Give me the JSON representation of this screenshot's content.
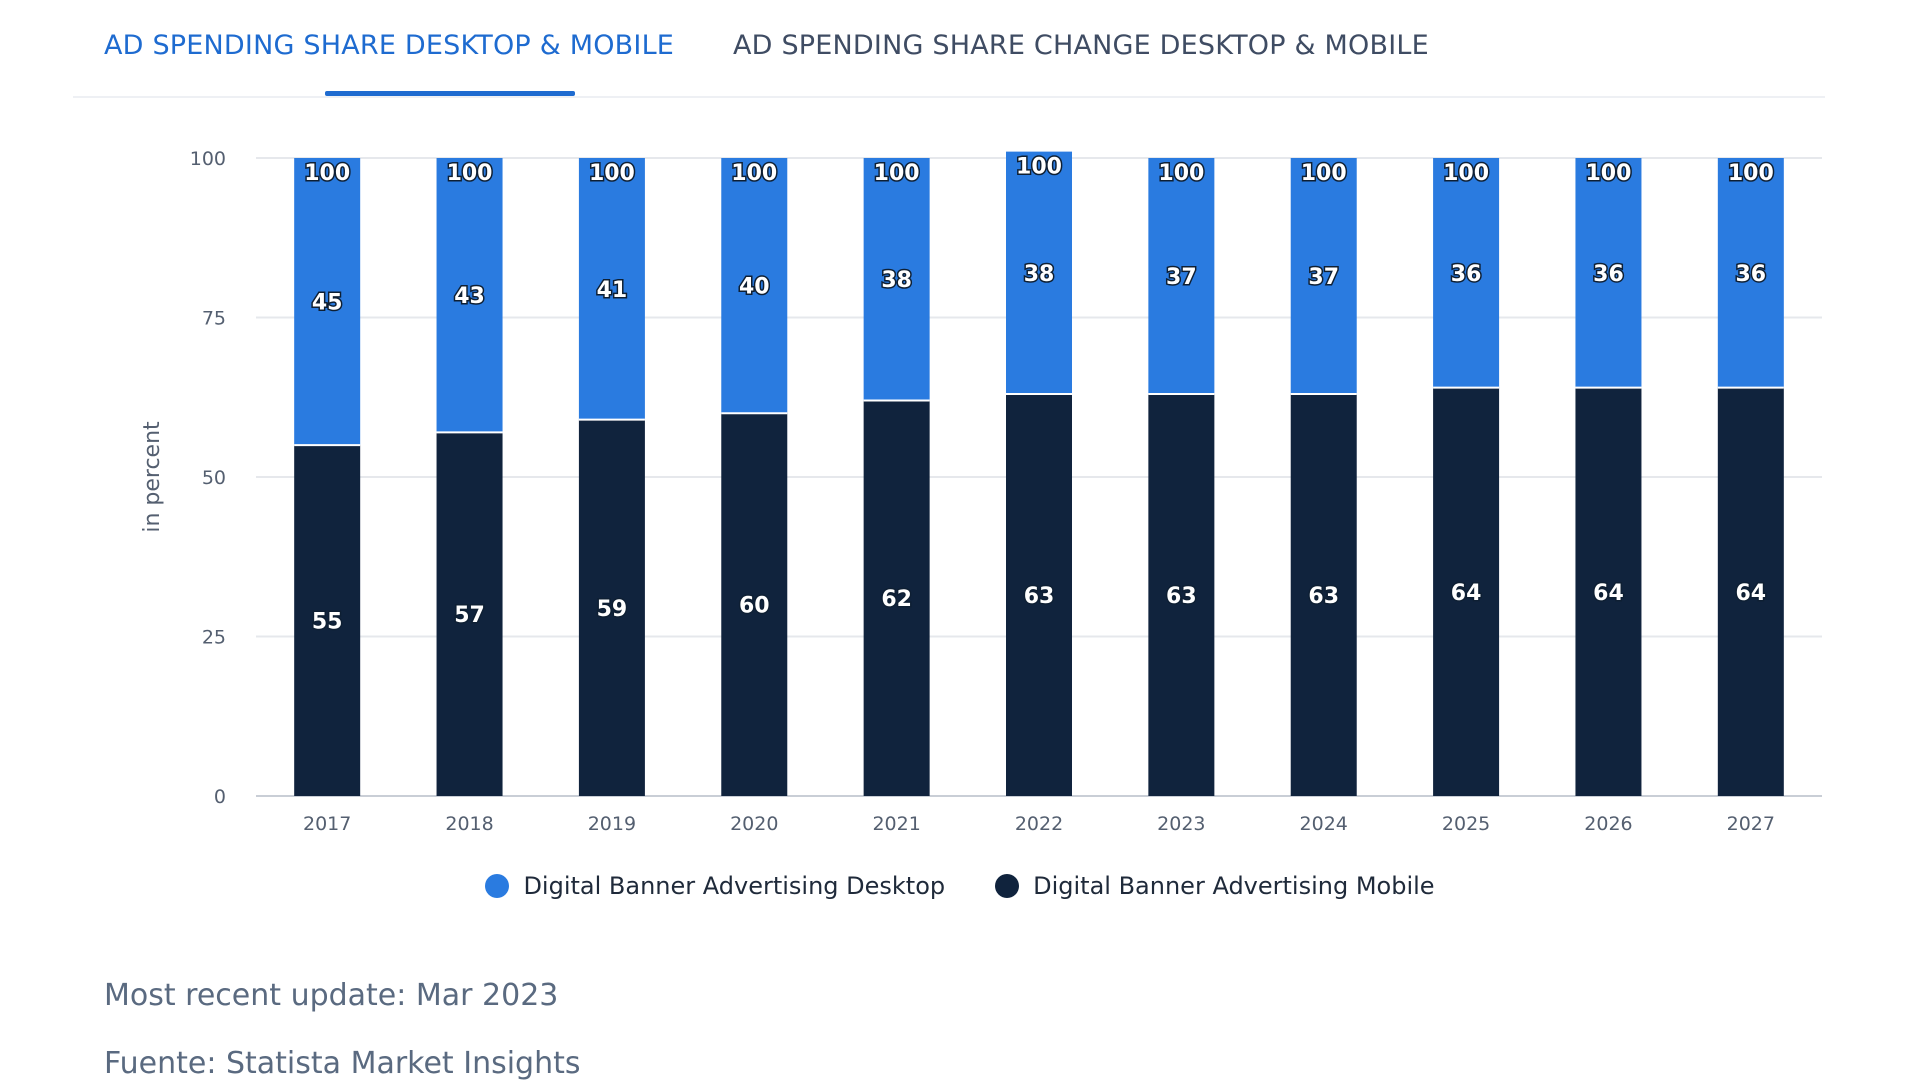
{
  "tabs": {
    "active_label": "AD SPENDING SHARE DESKTOP & MOBILE",
    "inactive_label": "AD SPENDING SHARE CHANGE DESKTOP & MOBILE"
  },
  "colors": {
    "accent": "#1e6bd0",
    "desktop": "#2a7be0",
    "mobile": "#10233d",
    "grid": "#e6e8ec"
  },
  "chart_data": {
    "type": "bar",
    "stacked": true,
    "categories": [
      "2017",
      "2018",
      "2019",
      "2020",
      "2021",
      "2022",
      "2023",
      "2024",
      "2025",
      "2026",
      "2027"
    ],
    "series": [
      {
        "name": "Digital Banner Advertising Mobile",
        "values": [
          55,
          57,
          59,
          60,
          62,
          63,
          63,
          63,
          64,
          64,
          64
        ]
      },
      {
        "name": "Digital Banner Advertising Desktop",
        "values": [
          45,
          43,
          41,
          40,
          38,
          38,
          37,
          37,
          36,
          36,
          36
        ]
      }
    ],
    "totals": [
      100,
      100,
      100,
      100,
      100,
      100,
      100,
      100,
      100,
      100,
      100
    ],
    "ylabel": "in percent",
    "ylim": [
      0,
      100
    ],
    "yticks": [
      0,
      25,
      50,
      75,
      100
    ],
    "grid": true,
    "legend_position": "bottom-center"
  },
  "legend": {
    "desktop_label": "Digital Banner Advertising Desktop",
    "mobile_label": "Digital Banner Advertising Mobile"
  },
  "footer": {
    "update": "Most recent update: Mar 2023",
    "source": "Fuente: Statista Market Insights"
  }
}
